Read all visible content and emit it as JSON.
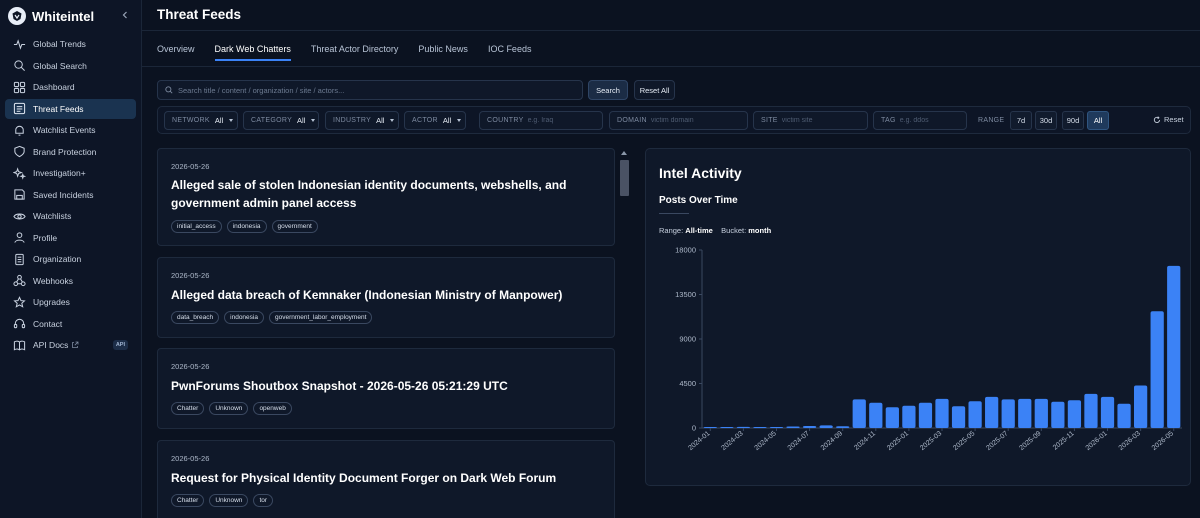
{
  "app": {
    "name": "Whiteintel"
  },
  "sidebar": {
    "items": [
      {
        "label": "Global Trends",
        "icon": "activity-icon"
      },
      {
        "label": "Global Search",
        "icon": "search-icon"
      },
      {
        "label": "Dashboard",
        "icon": "grid-icon"
      },
      {
        "label": "Threat Feeds",
        "icon": "feed-icon",
        "active": true
      },
      {
        "label": "Watchlist Events",
        "icon": "bell-icon"
      },
      {
        "label": "Brand Protection",
        "icon": "shield-icon"
      },
      {
        "label": "Investigation+",
        "icon": "sparkle-icon"
      },
      {
        "label": "Saved Incidents",
        "icon": "save-icon"
      },
      {
        "label": "Watchlists",
        "icon": "eye-icon"
      },
      {
        "label": "Profile",
        "icon": "user-icon"
      },
      {
        "label": "Organization",
        "icon": "building-icon"
      },
      {
        "label": "Webhooks",
        "icon": "webhook-icon"
      },
      {
        "label": "Upgrades",
        "icon": "star-icon"
      },
      {
        "label": "Contact",
        "icon": "headset-icon"
      },
      {
        "label": "API Docs",
        "icon": "book-icon",
        "badge": "API"
      }
    ]
  },
  "header": {
    "title": "Threat Feeds"
  },
  "tabs": [
    {
      "label": "Overview"
    },
    {
      "label": "Dark Web Chatters",
      "active": true
    },
    {
      "label": "Threat Actor Directory"
    },
    {
      "label": "Public News"
    },
    {
      "label": "IOC Feeds"
    }
  ],
  "search": {
    "placeholder": "Search title / content / organization / site / actors...",
    "search_label": "Search",
    "reset_all_label": "Reset All"
  },
  "filters": {
    "network": {
      "label": "NETWORK",
      "value": "All"
    },
    "category": {
      "label": "CATEGORY",
      "value": "All"
    },
    "industry": {
      "label": "INDUSTRY",
      "value": "All"
    },
    "actor": {
      "label": "ACTOR",
      "value": "All"
    },
    "country": {
      "label": "COUNTRY",
      "placeholder": "e.g. Iraq"
    },
    "domain": {
      "label": "DOMAIN",
      "placeholder": "victim domain"
    },
    "site": {
      "label": "SITE",
      "placeholder": "victim site"
    },
    "tag": {
      "label": "TAG",
      "placeholder": "e.g. ddos"
    },
    "range_label": "RANGE",
    "ranges": [
      "7d",
      "30d",
      "90d",
      "All"
    ],
    "active_range": "All",
    "reset_label": "Reset"
  },
  "feed": [
    {
      "date": "2026-05-26",
      "title": "Alleged sale of stolen Indonesian identity documents, webshells, and government admin panel access",
      "tags": [
        "initial_access",
        "indonesia",
        "government"
      ]
    },
    {
      "date": "2026-05-26",
      "title": "Alleged data breach of Kemnaker (Indonesian Ministry of Manpower)",
      "tags": [
        "data_breach",
        "indonesia",
        "government_labor_employment"
      ]
    },
    {
      "date": "2026-05-26",
      "title": "PwnForums Shoutbox Snapshot - 2026-05-26 05:21:29 UTC",
      "tags": [
        "Chatter",
        "Unknown",
        "openweb"
      ]
    },
    {
      "date": "2026-05-26",
      "title": "Request for Physical Identity Document Forger on Dark Web Forum",
      "tags": [
        "Chatter",
        "Unknown",
        "tor"
      ]
    }
  ],
  "intel": {
    "title": "Intel Activity",
    "subtitle": "Posts Over Time",
    "range_prefix": "Range:",
    "range_value": "All-time",
    "bucket_prefix": "Bucket:",
    "bucket_value": "month"
  },
  "chart_data": {
    "type": "bar",
    "title": "Posts Over Time",
    "xlabel": "",
    "ylabel": "",
    "ylim": [
      0,
      18000
    ],
    "yticks": [
      0,
      4500,
      9000,
      13500,
      18000
    ],
    "x_tick_labels": [
      "2024-01",
      "2024-03",
      "2024-05",
      "2024-07",
      "2024-09",
      "2024-11",
      "2025-01",
      "2025-03",
      "2025-05",
      "2025-07",
      "2025-09",
      "2025-11",
      "2026-01",
      "2026-03",
      "2026-05"
    ],
    "categories": [
      "2024-01",
      "2024-02",
      "2024-03",
      "2024-04",
      "2024-05",
      "2024-06",
      "2024-07",
      "2024-08",
      "2024-09",
      "2024-10",
      "2024-11",
      "2024-12",
      "2025-01",
      "2025-02",
      "2025-03",
      "2025-04",
      "2025-05",
      "2025-06",
      "2025-07",
      "2025-08",
      "2025-09",
      "2025-10",
      "2025-11",
      "2025-12",
      "2026-01",
      "2026-02",
      "2026-03",
      "2026-04",
      "2026-05"
    ],
    "values": [
      60,
      40,
      120,
      90,
      70,
      150,
      200,
      260,
      180,
      2900,
      2550,
      2100,
      2250,
      2550,
      2950,
      2200,
      2700,
      3150,
      2900,
      2950,
      2950,
      2650,
      2800,
      3450,
      3150,
      2450,
      4300,
      11800,
      16400
    ],
    "color": "#3b82f6",
    "grid": false
  }
}
